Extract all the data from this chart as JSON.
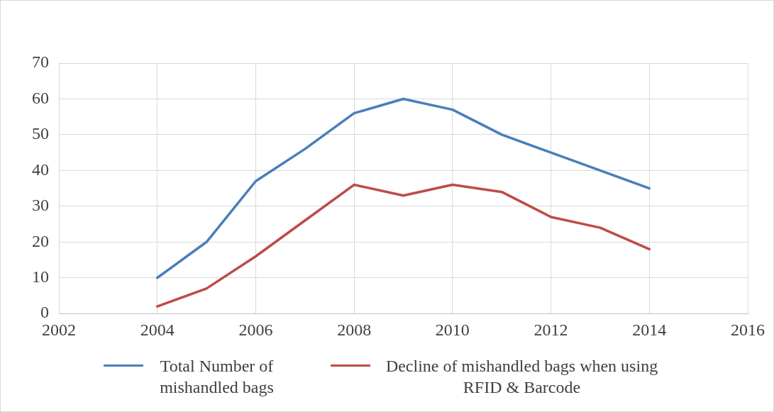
{
  "chart_data": {
    "type": "line",
    "x": [
      2004,
      2005,
      2006,
      2007,
      2008,
      2009,
      2010,
      2011,
      2012,
      2013,
      2014
    ],
    "series": [
      {
        "name": "Total Number of mishandled bags",
        "color": "#4a7ebb",
        "values": [
          10,
          20,
          37,
          46,
          56,
          60,
          57,
          50,
          45,
          40,
          35
        ]
      },
      {
        "name": "Decline of mishandled bags when using RFID & Barcode",
        "color": "#be4b48",
        "values": [
          2,
          7,
          16,
          26,
          36,
          33,
          36,
          34,
          27,
          24,
          18
        ]
      }
    ],
    "xlim": [
      2002,
      2016
    ],
    "xticks": [
      2002,
      2004,
      2006,
      2008,
      2010,
      2012,
      2014,
      2016
    ],
    "ylim": [
      0,
      70
    ],
    "yticks": [
      0,
      10,
      20,
      30,
      40,
      50,
      60,
      70
    ],
    "grid": true,
    "legend": "bottom",
    "marker": "none",
    "line_style": "solid"
  }
}
